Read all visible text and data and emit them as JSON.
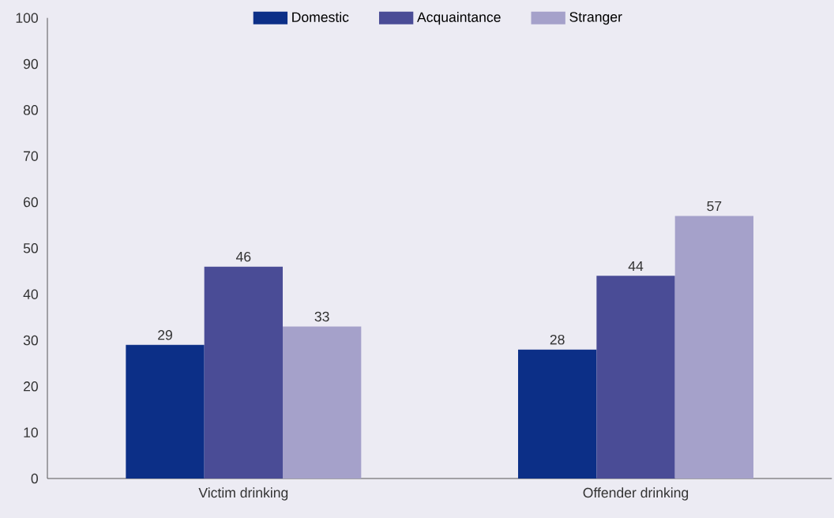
{
  "chart_data": {
    "type": "bar",
    "categories": [
      "Victim drinking",
      "Offender drinking"
    ],
    "series": [
      {
        "name": "Domestic",
        "color": "#0c2f87",
        "values": [
          29,
          28
        ]
      },
      {
        "name": "Acquaintance",
        "color": "#4a4c96",
        "values": [
          46,
          44
        ]
      },
      {
        "name": "Stranger",
        "color": "#a5a1ca",
        "values": [
          33,
          57
        ]
      }
    ],
    "ylim": [
      0,
      100
    ],
    "yticks": [
      0,
      10,
      20,
      30,
      40,
      50,
      60,
      70,
      80,
      90,
      100
    ],
    "data_labels": true,
    "legend": "top",
    "grid": false
  }
}
